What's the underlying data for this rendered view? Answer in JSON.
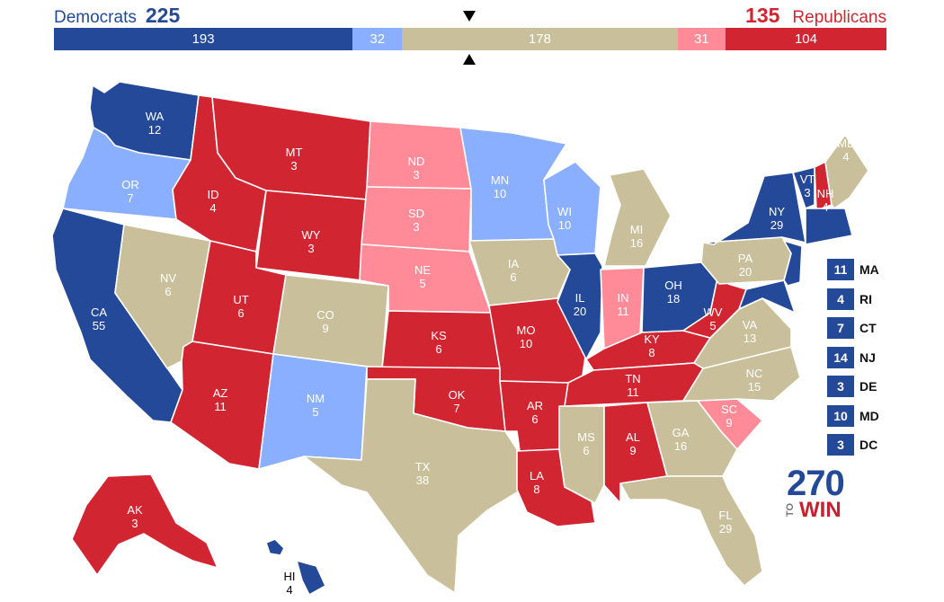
{
  "header": {
    "dem_label": "Democrats",
    "dem_total": "225",
    "rep_total": "135",
    "rep_label": "Republicans"
  },
  "colors": {
    "safe_dem": "#244999",
    "lean_dem": "#8aafff",
    "tossup": "#c9c09b",
    "lean_rep": "#ff8b98",
    "safe_rep": "#d22532"
  },
  "tally": [
    {
      "id": "safe-dem",
      "value": 193,
      "label": "193",
      "color": "#244999"
    },
    {
      "id": "lean-dem",
      "value": 32,
      "label": "32",
      "color": "#8aafff"
    },
    {
      "id": "tossup",
      "value": 178,
      "label": "178",
      "color": "#c9c09b"
    },
    {
      "id": "lean-rep",
      "value": 31,
      "label": "31",
      "color": "#ff8b98"
    },
    {
      "id": "safe-rep",
      "value": 104,
      "label": "104",
      "color": "#d22532"
    }
  ],
  "states": [
    {
      "abbr": "WA",
      "ev": "12",
      "status": "safe_dem"
    },
    {
      "abbr": "OR",
      "ev": "7",
      "status": "lean_dem"
    },
    {
      "abbr": "CA",
      "ev": "55",
      "status": "safe_dem"
    },
    {
      "abbr": "NV",
      "ev": "6",
      "status": "tossup"
    },
    {
      "abbr": "ID",
      "ev": "4",
      "status": "safe_rep"
    },
    {
      "abbr": "MT",
      "ev": "3",
      "status": "safe_rep"
    },
    {
      "abbr": "WY",
      "ev": "3",
      "status": "safe_rep"
    },
    {
      "abbr": "UT",
      "ev": "6",
      "status": "safe_rep"
    },
    {
      "abbr": "AZ",
      "ev": "11",
      "status": "safe_rep"
    },
    {
      "abbr": "CO",
      "ev": "9",
      "status": "tossup"
    },
    {
      "abbr": "NM",
      "ev": "5",
      "status": "lean_dem"
    },
    {
      "abbr": "ND",
      "ev": "3",
      "status": "lean_rep"
    },
    {
      "abbr": "SD",
      "ev": "3",
      "status": "lean_rep"
    },
    {
      "abbr": "NE",
      "ev": "5",
      "status": "lean_rep"
    },
    {
      "abbr": "KS",
      "ev": "6",
      "status": "safe_rep"
    },
    {
      "abbr": "OK",
      "ev": "7",
      "status": "safe_rep"
    },
    {
      "abbr": "TX",
      "ev": "38",
      "status": "tossup"
    },
    {
      "abbr": "MN",
      "ev": "10",
      "status": "lean_dem"
    },
    {
      "abbr": "IA",
      "ev": "6",
      "status": "tossup"
    },
    {
      "abbr": "MO",
      "ev": "10",
      "status": "safe_rep"
    },
    {
      "abbr": "AR",
      "ev": "6",
      "status": "safe_rep"
    },
    {
      "abbr": "LA",
      "ev": "8",
      "status": "safe_rep"
    },
    {
      "abbr": "WI",
      "ev": "10",
      "status": "lean_dem"
    },
    {
      "abbr": "IL",
      "ev": "20",
      "status": "safe_dem"
    },
    {
      "abbr": "MI",
      "ev": "16",
      "status": "tossup"
    },
    {
      "abbr": "IN",
      "ev": "11",
      "status": "lean_rep"
    },
    {
      "abbr": "OH",
      "ev": "18",
      "status": "safe_dem"
    },
    {
      "abbr": "KY",
      "ev": "8",
      "status": "safe_rep"
    },
    {
      "abbr": "TN",
      "ev": "11",
      "status": "safe_rep"
    },
    {
      "abbr": "MS",
      "ev": "6",
      "status": "tossup"
    },
    {
      "abbr": "AL",
      "ev": "9",
      "status": "safe_rep"
    },
    {
      "abbr": "GA",
      "ev": "16",
      "status": "tossup"
    },
    {
      "abbr": "FL",
      "ev": "29",
      "status": "tossup"
    },
    {
      "abbr": "SC",
      "ev": "9",
      "status": "lean_rep"
    },
    {
      "abbr": "NC",
      "ev": "15",
      "status": "tossup"
    },
    {
      "abbr": "VA",
      "ev": "13",
      "status": "tossup"
    },
    {
      "abbr": "WV",
      "ev": "5",
      "status": "safe_rep"
    },
    {
      "abbr": "PA",
      "ev": "20",
      "status": "tossup"
    },
    {
      "abbr": "NY",
      "ev": "29",
      "status": "safe_dem"
    },
    {
      "abbr": "VT",
      "ev": "3",
      "status": "safe_dem"
    },
    {
      "abbr": "NH",
      "ev": "4",
      "status": "safe_rep"
    },
    {
      "abbr": "ME",
      "ev": "4",
      "status": "tossup"
    },
    {
      "abbr": "AK",
      "ev": "3",
      "status": "safe_rep"
    },
    {
      "abbr": "HI",
      "ev": "4",
      "status": "safe_dem"
    }
  ],
  "small_states": [
    {
      "abbr": "MA",
      "ev": "11",
      "status": "safe_dem"
    },
    {
      "abbr": "RI",
      "ev": "4",
      "status": "safe_dem"
    },
    {
      "abbr": "CT",
      "ev": "7",
      "status": "safe_dem"
    },
    {
      "abbr": "NJ",
      "ev": "14",
      "status": "safe_dem"
    },
    {
      "abbr": "DE",
      "ev": "3",
      "status": "safe_dem"
    },
    {
      "abbr": "MD",
      "ev": "10",
      "status": "safe_dem"
    },
    {
      "abbr": "DC",
      "ev": "3",
      "status": "safe_dem"
    }
  ],
  "logo": {
    "number": "270",
    "to": "TO",
    "win": "WIN"
  }
}
